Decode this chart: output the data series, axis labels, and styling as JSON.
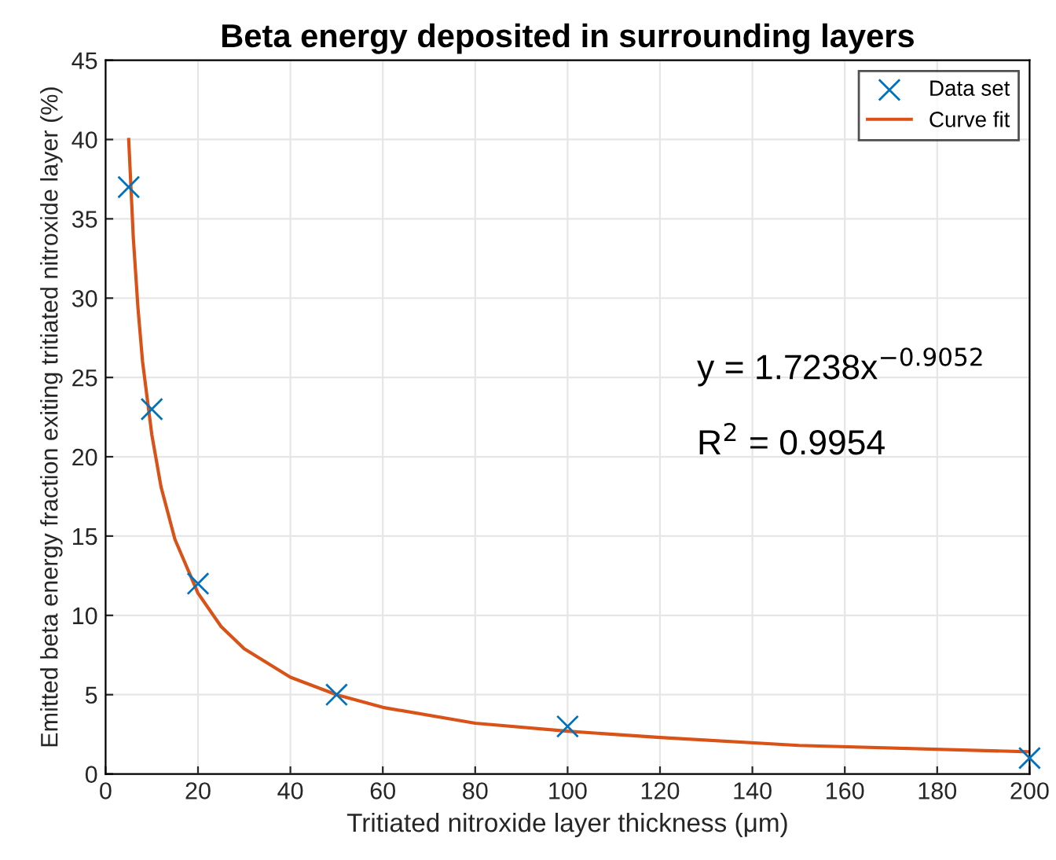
{
  "chart_data": {
    "type": "scatter",
    "title": "Beta energy deposited in surrounding layers",
    "xlabel": "Tritiated nitroxide layer thickness (μm)",
    "ylabel": "Emitted beta energy fraction exiting tritiated nitroxide layer (%)",
    "xlim": [
      0,
      200
    ],
    "ylim": [
      0,
      45
    ],
    "xticks": [
      0,
      20,
      40,
      60,
      80,
      100,
      120,
      140,
      160,
      180,
      200
    ],
    "yticks": [
      0,
      5,
      10,
      15,
      20,
      25,
      30,
      35,
      40,
      45
    ],
    "grid": true,
    "legend": "top right",
    "series": [
      {
        "name": "Data set",
        "marker": "cross",
        "color": "#0072bd",
        "x": [
          5,
          10,
          20,
          50,
          100,
          200
        ],
        "values": [
          37,
          23,
          12,
          5,
          3,
          1
        ]
      },
      {
        "name": "Curve fit",
        "type": "line",
        "marker": "none",
        "line_style": "solid",
        "color": "#d95319",
        "x": [
          5,
          6,
          7,
          8,
          10,
          12,
          15,
          20,
          25,
          30,
          40,
          50,
          60,
          80,
          100,
          120,
          150,
          200
        ],
        "values": [
          40.0,
          33.8,
          29.4,
          26.0,
          21.4,
          18.1,
          14.8,
          11.4,
          9.3,
          7.9,
          6.1,
          5.0,
          4.2,
          3.2,
          2.7,
          2.3,
          1.8,
          1.4
        ]
      }
    ],
    "annotations": [
      "y = 1.7238x$^{−0.9052}$",
      "R$^{2}$ = 0.9954"
    ]
  }
}
